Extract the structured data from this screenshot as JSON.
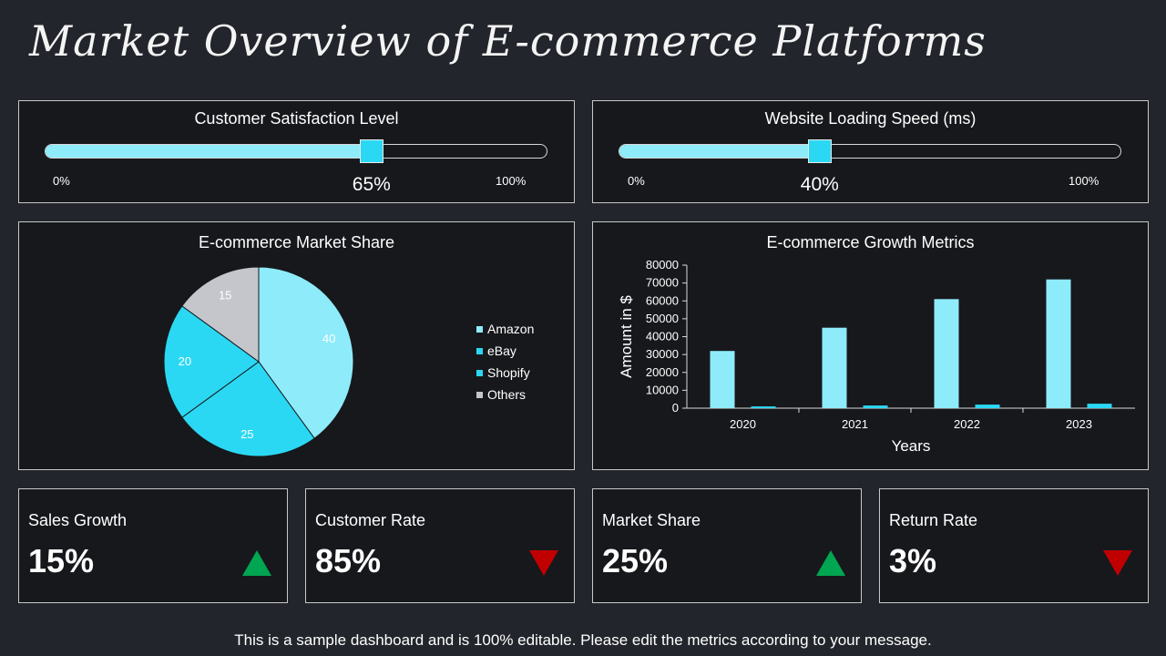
{
  "page": {
    "title": "Market Overview of E-commerce Platforms",
    "footer": "This is a sample dashboard and is 100% editable. Please edit the metrics according to your message."
  },
  "colors": {
    "background": "#22252b",
    "panel": "#17181c",
    "light_cyan": "#8eebfa",
    "cyan": "#2bd8f3",
    "gray": "#c4c6cc",
    "up": "#00a651",
    "down": "#c00000"
  },
  "gauges": [
    {
      "title": "Customer Satisfaction Level",
      "min_label": "0%",
      "max_label": "100%",
      "value_label": "65%",
      "value": 0.65
    },
    {
      "title": "Website Loading Speed (ms)",
      "min_label": "0%",
      "max_label": "100%",
      "value_label": "40%",
      "value": 0.4
    }
  ],
  "chart_data": [
    {
      "type": "pie",
      "title": "E-commerce Market Share",
      "categories": [
        "Amazon",
        "eBay",
        "Shopify",
        "Others"
      ],
      "values": [
        40,
        25,
        20,
        15
      ],
      "colors": [
        "#8eebfa",
        "#2bd8f3",
        "#2bd8f3",
        "#c4c6cc"
      ],
      "legend": "right"
    },
    {
      "type": "bar",
      "title": "E-commerce Growth Metrics",
      "categories": [
        "2020",
        "2021",
        "2022",
        "2023"
      ],
      "series": [
        {
          "values": [
            32000,
            45000,
            61000,
            72000
          ],
          "color": "#8eebfa"
        },
        {
          "values": [
            1000,
            1500,
            2000,
            2500
          ],
          "color": "#2bd8f3"
        }
      ],
      "xlabel": "Years",
      "ylabel": "Amount in $",
      "ylim": [
        0,
        80000
      ],
      "yticks": [
        "0",
        "10000",
        "20000",
        "30000",
        "40000",
        "50000",
        "60000",
        "70000",
        "80000"
      ],
      "grid": false
    }
  ],
  "kpis": [
    {
      "title": "Sales Growth",
      "value": "15%",
      "trend": "up",
      "trend_icon": "triangle-up-icon"
    },
    {
      "title": "Customer Rate",
      "value": "85%",
      "trend": "down",
      "trend_icon": "triangle-down-icon"
    },
    {
      "title": "Market Share",
      "value": "25%",
      "trend": "up",
      "trend_icon": "triangle-up-icon"
    },
    {
      "title": "Return Rate",
      "value": "3%",
      "trend": "down",
      "trend_icon": "triangle-down-icon"
    }
  ]
}
